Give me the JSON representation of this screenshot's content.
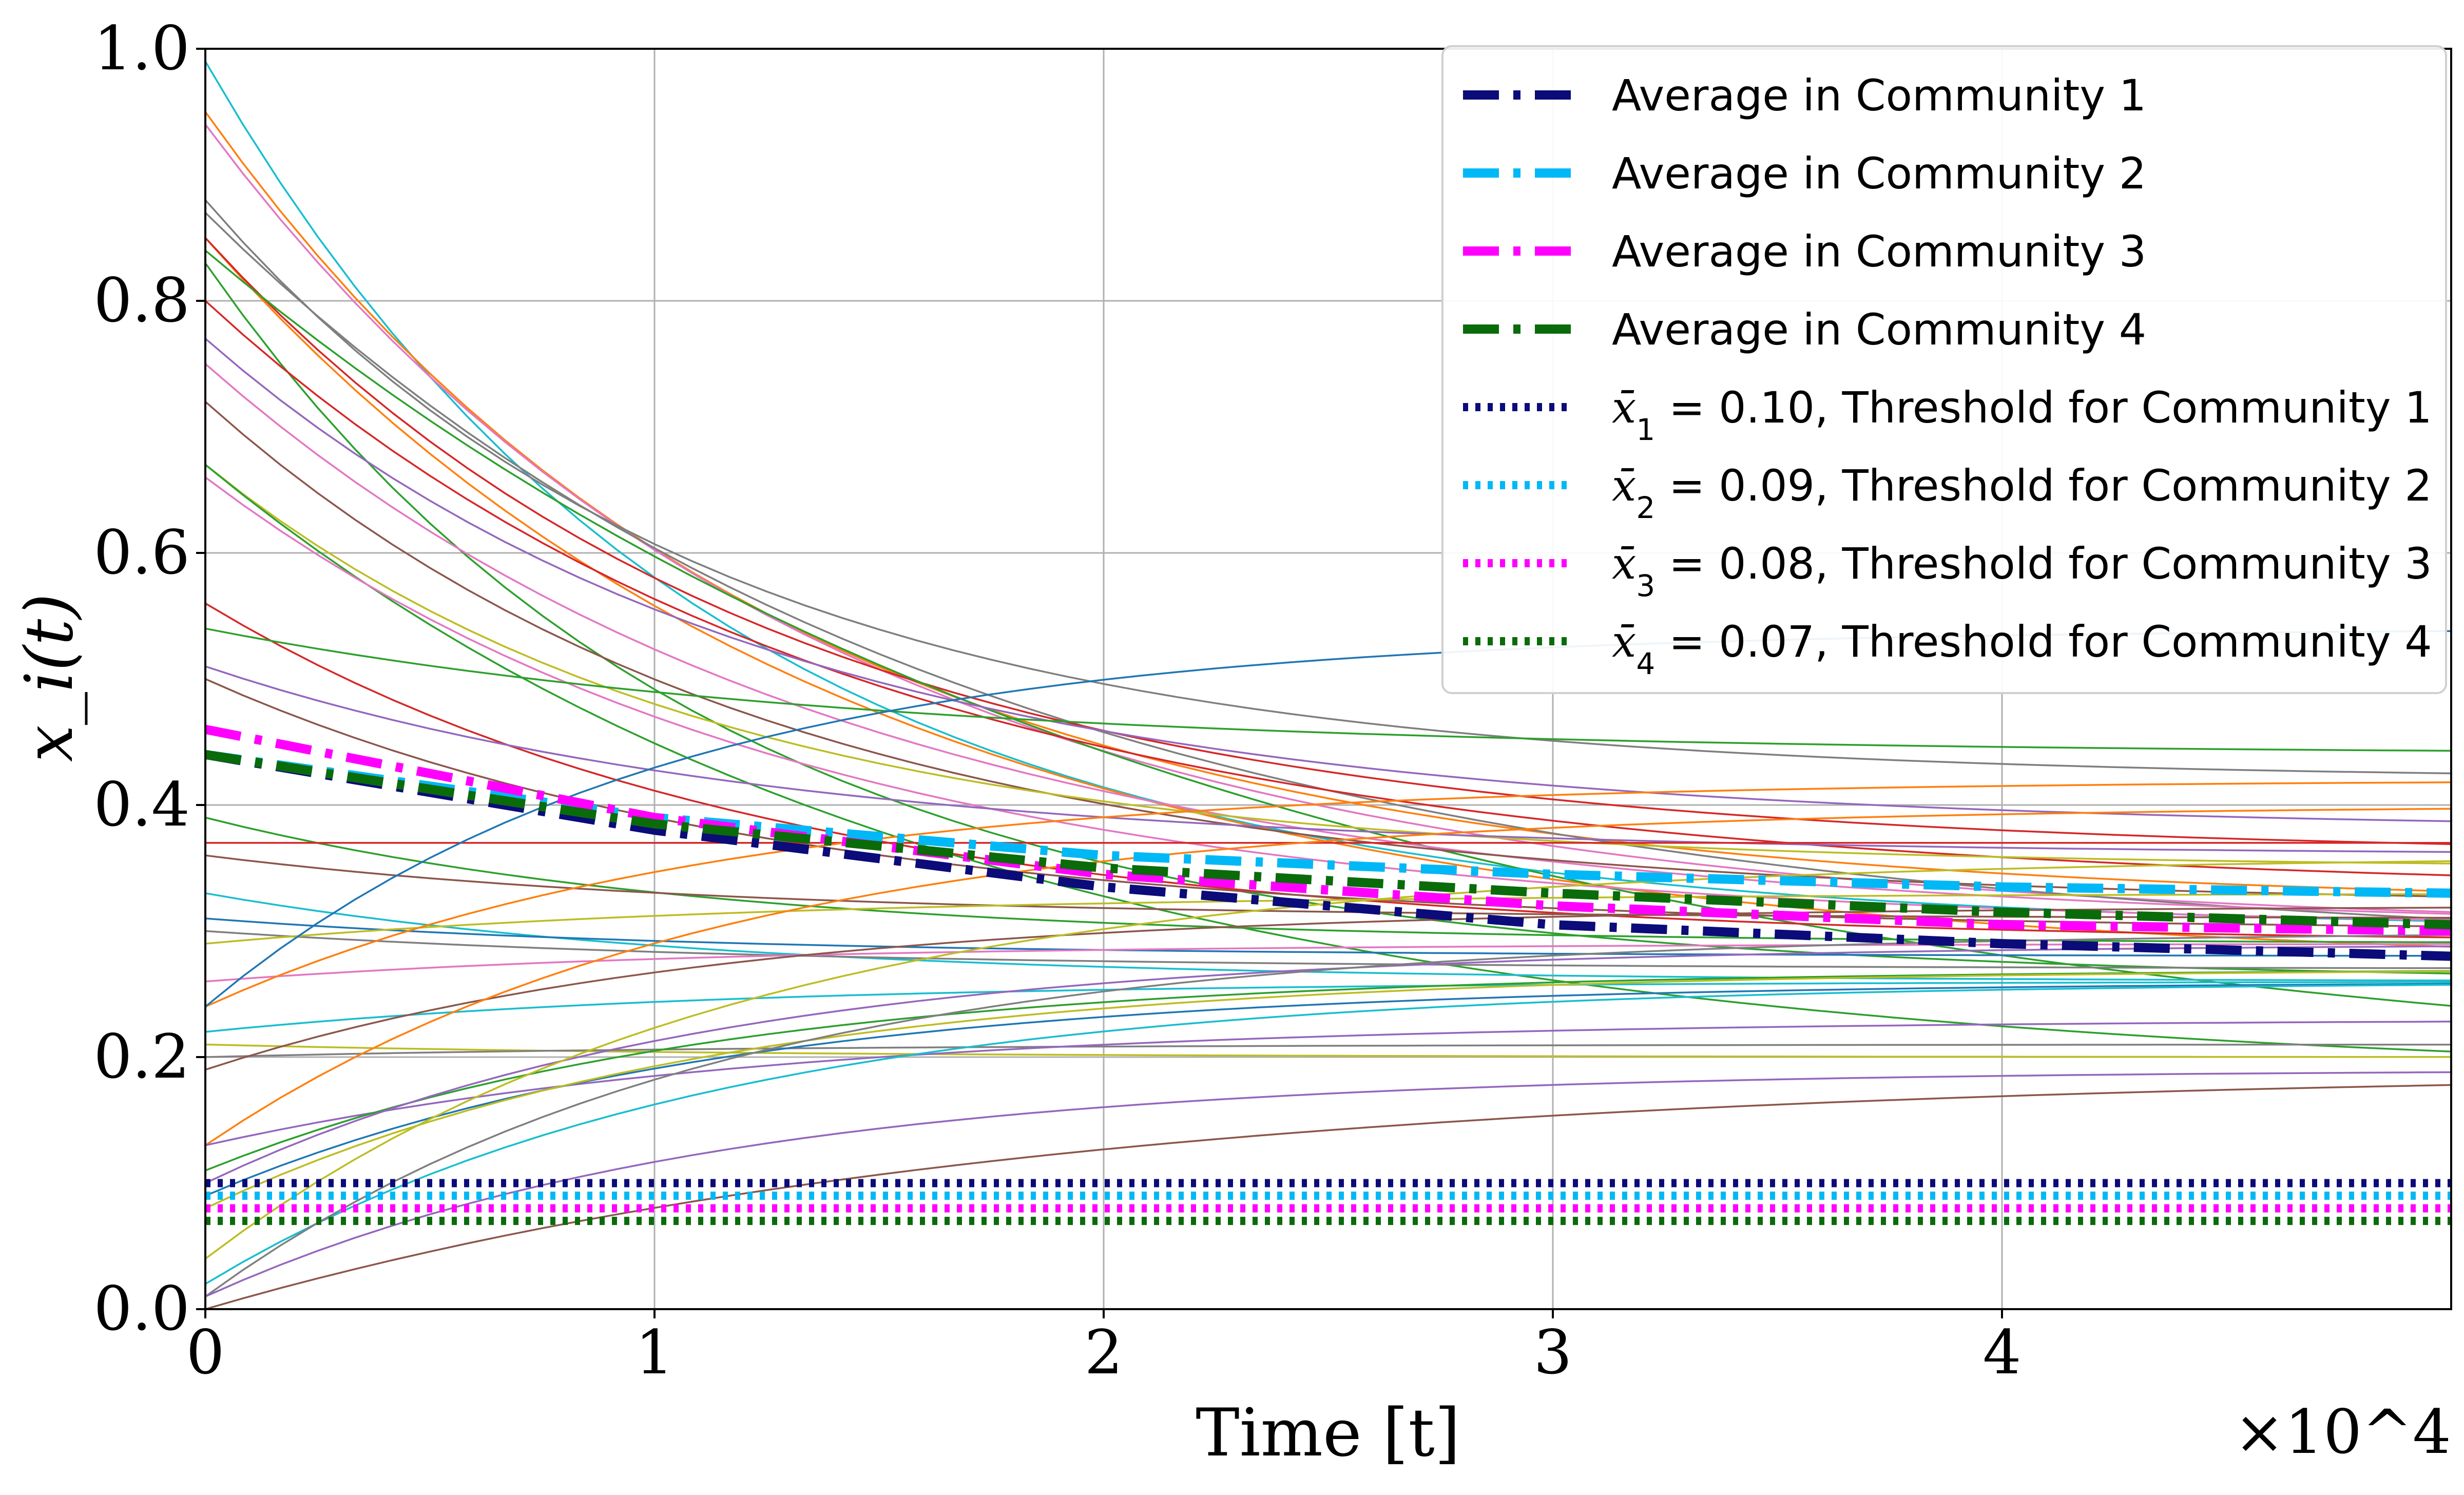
{
  "chart_data": {
    "type": "line",
    "title": "",
    "xlabel": "Time [t]",
    "ylabel": "x_i(t)",
    "x_multiplier_label": "×10^4",
    "xlim": [
      0,
      5
    ],
    "ylim": [
      0,
      1
    ],
    "x_ticks": [
      "0",
      "1",
      "2",
      "3",
      "4"
    ],
    "y_ticks": [
      "0.0",
      "0.2",
      "0.4",
      "0.6",
      "0.8",
      "1.0"
    ],
    "grid": true,
    "legend_position": "top-right",
    "individual_trajectories": [
      {
        "start": 0.99,
        "end": 0.3,
        "color": "#17becf",
        "rate": 0.9
      },
      {
        "start": 0.95,
        "end": 0.32,
        "color": "#ff7f0e",
        "rate": 0.8
      },
      {
        "start": 0.94,
        "end": 0.3,
        "color": "#e377c2",
        "rate": 0.75
      },
      {
        "start": 0.88,
        "end": 0.42,
        "color": "#7f7f7f",
        "rate": 0.9
      },
      {
        "start": 0.87,
        "end": 0.28,
        "color": "#7f7f7f",
        "rate": 0.6
      },
      {
        "start": 0.85,
        "end": 0.27,
        "color": "#ff7f0e",
        "rate": 0.7
      },
      {
        "start": 0.85,
        "end": 0.36,
        "color": "#d62728",
        "rate": 0.8
      },
      {
        "start": 0.84,
        "end": 0.17,
        "color": "#2ca02c",
        "rate": 0.45
      },
      {
        "start": 0.83,
        "end": 0.26,
        "color": "#2ca02c",
        "rate": 0.9
      },
      {
        "start": 0.8,
        "end": 0.33,
        "color": "#d62728",
        "rate": 0.7
      },
      {
        "start": 0.77,
        "end": 0.38,
        "color": "#9467bd",
        "rate": 0.8
      },
      {
        "start": 0.75,
        "end": 0.3,
        "color": "#e377c2",
        "rate": 0.7
      },
      {
        "start": 0.72,
        "end": 0.32,
        "color": "#8c564b",
        "rate": 0.8
      },
      {
        "start": 0.67,
        "end": 0.35,
        "color": "#bcbd22",
        "rate": 0.9
      },
      {
        "start": 0.67,
        "end": 0.18,
        "color": "#2ca02c",
        "rate": 0.6
      },
      {
        "start": 0.66,
        "end": 0.3,
        "color": "#e377c2",
        "rate": 0.75
      },
      {
        "start": 0.56,
        "end": 0.29,
        "color": "#d62728",
        "rate": 0.8
      },
      {
        "start": 0.54,
        "end": 0.44,
        "color": "#2ca02c",
        "rate": 0.7
      },
      {
        "start": 0.51,
        "end": 0.36,
        "color": "#9467bd",
        "rate": 0.8
      },
      {
        "start": 0.5,
        "end": 0.3,
        "color": "#8c564b",
        "rate": 0.8
      },
      {
        "start": 0.39,
        "end": 0.29,
        "color": "#2ca02c",
        "rate": 0.9
      },
      {
        "start": 0.37,
        "end": 0.37,
        "color": "#d62728",
        "rate": 0.9
      },
      {
        "start": 0.36,
        "end": 0.31,
        "color": "#8c564b",
        "rate": 0.9
      },
      {
        "start": 0.33,
        "end": 0.26,
        "color": "#17becf",
        "rate": 0.9
      },
      {
        "start": 0.31,
        "end": 0.28,
        "color": "#1f77b4",
        "rate": 0.9
      },
      {
        "start": 0.3,
        "end": 0.27,
        "color": "#7f7f7f",
        "rate": 0.8
      },
      {
        "start": 0.29,
        "end": 0.33,
        "color": "#bcbd22",
        "rate": 0.8
      },
      {
        "start": 0.26,
        "end": 0.29,
        "color": "#e377c2",
        "rate": 0.9
      },
      {
        "start": 0.24,
        "end": 0.42,
        "color": "#ff7f0e",
        "rate": 0.9
      },
      {
        "start": 0.24,
        "end": 0.54,
        "color": "#1f77b4",
        "rate": 1.0
      },
      {
        "start": 0.22,
        "end": 0.26,
        "color": "#17becf",
        "rate": 0.9
      },
      {
        "start": 0.21,
        "end": 0.2,
        "color": "#bcbd22",
        "rate": 0.9
      },
      {
        "start": 0.2,
        "end": 0.21,
        "color": "#7f7f7f",
        "rate": 0.9
      },
      {
        "start": 0.19,
        "end": 0.32,
        "color": "#8c564b",
        "rate": 0.9
      },
      {
        "start": 0.13,
        "end": 0.4,
        "color": "#ff7f0e",
        "rate": 0.9
      },
      {
        "start": 0.13,
        "end": 0.23,
        "color": "#9467bd",
        "rate": 0.8
      },
      {
        "start": 0.11,
        "end": 0.27,
        "color": "#2ca02c",
        "rate": 0.9
      },
      {
        "start": 0.1,
        "end": 0.29,
        "color": "#9467bd",
        "rate": 0.9
      },
      {
        "start": 0.09,
        "end": 0.26,
        "color": "#1f77b4",
        "rate": 0.9
      },
      {
        "start": 0.08,
        "end": 0.27,
        "color": "#bcbd22",
        "rate": 0.9
      },
      {
        "start": 0.04,
        "end": 0.36,
        "color": "#bcbd22",
        "rate": 0.85
      },
      {
        "start": 0.02,
        "end": 0.26,
        "color": "#17becf",
        "rate": 0.9
      },
      {
        "start": 0.01,
        "end": 0.3,
        "color": "#7f7f7f",
        "rate": 0.9
      },
      {
        "start": 0.01,
        "end": 0.19,
        "color": "#9467bd",
        "rate": 0.9
      },
      {
        "start": 0.0,
        "end": 0.19,
        "color": "#8c564b",
        "rate": 0.55
      }
    ],
    "series": [
      {
        "name": "Average in Community 1",
        "color": "#0b0b7a",
        "style": "dashdot",
        "x": [
          0,
          1,
          2,
          3,
          4,
          5
        ],
        "values": [
          0.44,
          0.38,
          0.335,
          0.305,
          0.29,
          0.28
        ]
      },
      {
        "name": "Average in Community 2",
        "color": "#00b8f5",
        "style": "dashdot",
        "x": [
          0,
          1,
          2,
          3,
          4,
          5
        ],
        "values": [
          0.44,
          0.39,
          0.36,
          0.345,
          0.335,
          0.33
        ]
      },
      {
        "name": "Average in Community 3",
        "color": "#ff00ff",
        "style": "dashdot",
        "x": [
          0,
          1,
          2,
          3,
          4,
          5
        ],
        "values": [
          0.46,
          0.39,
          0.345,
          0.32,
          0.305,
          0.3
        ]
      },
      {
        "name": "Average in Community 4",
        "color": "#0a6b0a",
        "style": "dashdot",
        "x": [
          0,
          1,
          2,
          3,
          4,
          5
        ],
        "values": [
          0.44,
          0.385,
          0.35,
          0.33,
          0.315,
          0.305
        ]
      }
    ],
    "thresholds": [
      {
        "symbol": "x̄",
        "index": "1",
        "value": 0.1,
        "value_label": "0.10",
        "label": "Threshold for Community 1",
        "color": "#0b0b7a"
      },
      {
        "symbol": "x̄",
        "index": "2",
        "value": 0.09,
        "value_label": "0.09",
        "label": "Threshold for Community 2",
        "color": "#00b8f5"
      },
      {
        "symbol": "x̄",
        "index": "3",
        "value": 0.08,
        "value_label": "0.08",
        "label": "Threshold for Community 3",
        "color": "#ff00ff"
      },
      {
        "symbol": "x̄",
        "index": "4",
        "value": 0.07,
        "value_label": "0.07",
        "label": "Threshold for Community 4",
        "color": "#0a6b0a"
      }
    ]
  }
}
